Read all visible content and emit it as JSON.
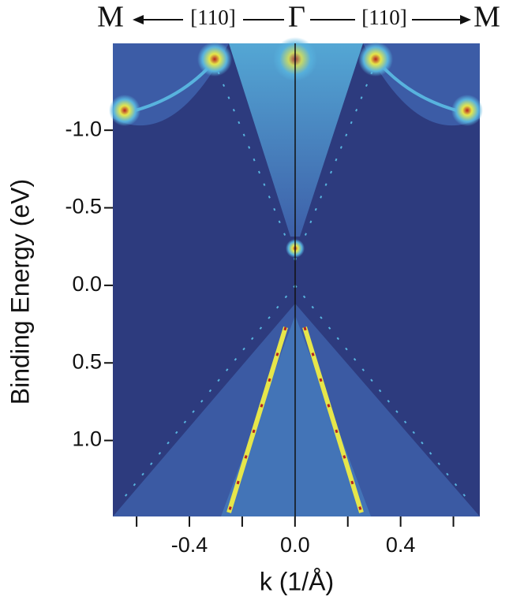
{
  "chart_data": {
    "type": "heatmap",
    "top_labels": [
      "M",
      "[110]",
      "Γ",
      "[110]",
      "M"
    ],
    "xlabel": "k (1/Å)",
    "ylabel": "Binding Energy (eV)",
    "xlim": [
      -0.69,
      0.7
    ],
    "xticks": [
      -0.4,
      {
        "value": 0,
        "label": "0.0"
      },
      0.4
    ],
    "xminorticks": [
      -0.6,
      -0.2,
      0.2,
      0.6
    ],
    "ylim": [
      1.49,
      -1.56
    ],
    "yticks": [
      {
        "value": -1,
        "label": "-1.0"
      },
      -0.5,
      {
        "value": 0,
        "label": "0.0"
      },
      0.5,
      {
        "value": 1,
        "label": "1.0"
      }
    ],
    "colormap": [
      "#2d3b7e",
      "#3f63ad",
      "#58b3de",
      "#e6e64a",
      "#b52222"
    ]
  }
}
